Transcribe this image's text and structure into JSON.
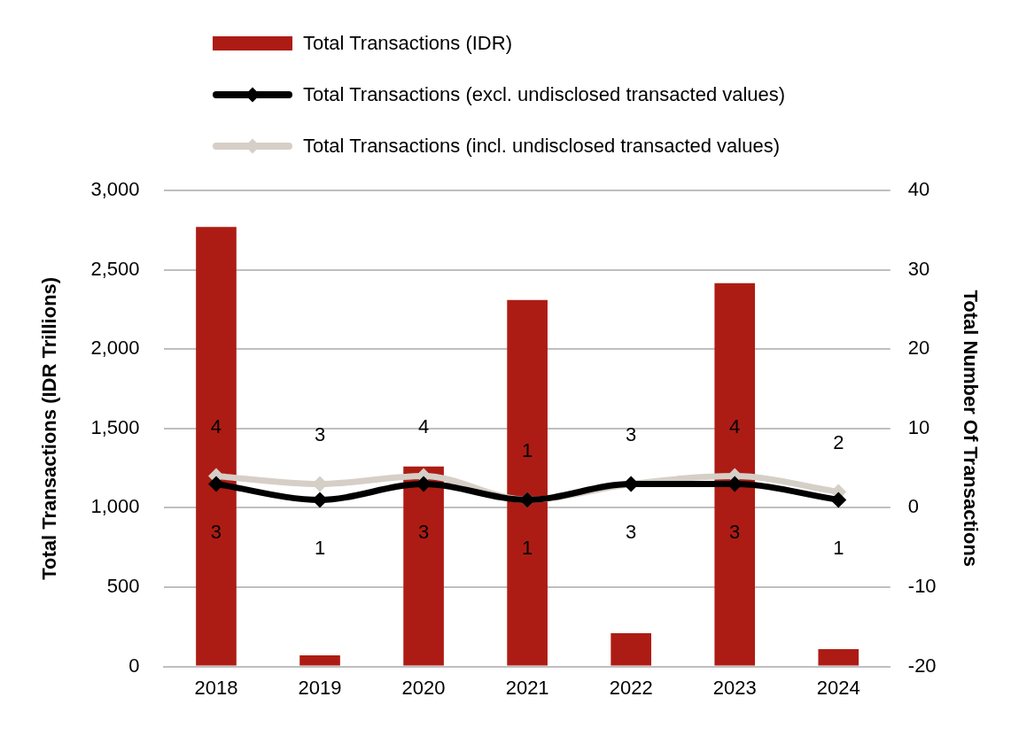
{
  "chart_data": {
    "type": "bar",
    "categories": [
      "2018",
      "2019",
      "2020",
      "2021",
      "2022",
      "2023",
      "2024"
    ],
    "ylabel": "Total Transactions (IDR Trillions)",
    "y2label": "Total Number Of Transactions",
    "ylim": [
      0,
      3000
    ],
    "yticks": [
      0,
      {
        "value": 500,
        "label": "500"
      },
      {
        "value": 1000,
        "label": "1,000"
      },
      {
        "value": 1500,
        "label": "1,500"
      },
      {
        "value": 2000,
        "label": "2,000"
      },
      {
        "value": 2500,
        "label": "2,500"
      },
      {
        "value": 3000,
        "label": "3,000"
      }
    ],
    "y2lim": [
      -20,
      40
    ],
    "y2ticks": [
      -20,
      -10,
      0,
      10,
      20,
      30,
      40
    ],
    "grid": "y",
    "legend": "top",
    "marker": "diamond",
    "line_style": "solid",
    "series": [
      {
        "name": "Total Transactions (IDR)",
        "color": "#ad1c14",
        "values": [
          2770,
          70,
          1260,
          2310,
          210,
          2415,
          110
        ]
      },
      {
        "name": "Total Transactions (excl. undisclosed transacted values)",
        "type": "line",
        "axis": "y2",
        "color": "#000000",
        "values": [
          3,
          1,
          3,
          1,
          3,
          3,
          1
        ],
        "value_labels": [
          "3",
          "1",
          "3",
          "1",
          "3",
          "3",
          "1"
        ]
      },
      {
        "name": "Total Transactions (incl. undisclosed transacted values)",
        "type": "line",
        "axis": "y2",
        "color": "#d6cfc7",
        "values": [
          4,
          3,
          4,
          1,
          3,
          4,
          2
        ],
        "value_labels": [
          "4",
          "3",
          "4",
          "1",
          "3",
          "4",
          "2"
        ]
      }
    ]
  }
}
